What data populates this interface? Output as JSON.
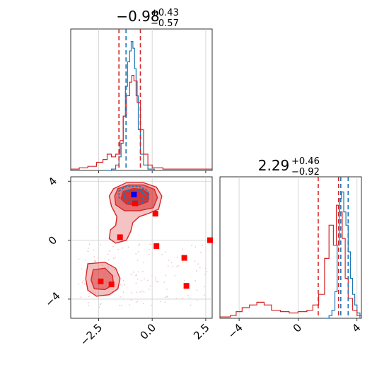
{
  "chart_data": [
    {
      "panel": "top-left marginal histogram (parameter 1)",
      "type": "line",
      "title": {
        "main": "−0.98",
        "sup": "+0.43",
        "sub": "−0.57"
      },
      "xlim": [
        -3.8,
        2.8
      ],
      "series": [
        {
          "color": "#1f77b4",
          "x": [
            -2.2,
            -1.9,
            -1.7,
            -1.55,
            -1.45,
            -1.35,
            -1.25,
            -1.15,
            -1.05,
            -0.98,
            -0.9,
            -0.82,
            -0.75,
            -0.65,
            -0.55,
            -0.4,
            -0.2,
            0.1
          ],
          "y": [
            0,
            0.01,
            0.04,
            0.1,
            0.2,
            0.4,
            0.62,
            0.8,
            0.88,
            0.95,
            0.9,
            0.75,
            0.55,
            0.3,
            0.12,
            0.04,
            0.01,
            0
          ]
        },
        {
          "color": "#d62728",
          "x": [
            -3.8,
            -3.4,
            -3.0,
            -2.6,
            -2.3,
            -2.1,
            -1.9,
            -1.7,
            -1.5,
            -1.35,
            -1.2,
            -1.05,
            -0.95,
            -0.85,
            -0.7,
            -0.55,
            -0.4,
            -0.2,
            0.0,
            0.5,
            1.2,
            2.0,
            2.8
          ],
          "y": [
            0.01,
            0.02,
            0.03,
            0.06,
            0.08,
            0.12,
            0.1,
            0.12,
            0.22,
            0.4,
            0.55,
            0.65,
            0.7,
            0.66,
            0.5,
            0.3,
            0.12,
            0.04,
            0.02,
            0.01,
            0.01,
            0.01,
            0.01
          ]
        }
      ],
      "vlines": [
        {
          "x": -1.22,
          "color": "#1f77b4",
          "style": "dashed"
        },
        {
          "x": -1.55,
          "color": "#d62728",
          "style": "dashed"
        },
        {
          "x": -0.55,
          "color": "#d62728",
          "style": "dashed"
        }
      ]
    },
    {
      "panel": "bottom-left 2D joint density",
      "type": "scatter",
      "xlim": [
        -3.8,
        2.8
      ],
      "ylim": [
        -5.3,
        4.3
      ],
      "xticks": [
        -2.5,
        0.0,
        2.5
      ],
      "xtick_labels": [
        "−2.5",
        "0.0",
        "2.5"
      ],
      "yticks": [
        -4,
        0,
        4
      ],
      "ytick_labels": [
        "−4",
        "0",
        "4"
      ],
      "grid": true,
      "markers": [
        {
          "x": -0.85,
          "y": 3.1,
          "color": "#0000ff",
          "shape": "square"
        },
        {
          "x": -0.8,
          "y": 2.5,
          "color": "#ff0000",
          "shape": "square"
        },
        {
          "x": 0.15,
          "y": 1.8,
          "color": "#ff0000",
          "shape": "square"
        },
        {
          "x": -1.5,
          "y": 0.2,
          "color": "#ff0000",
          "shape": "square"
        },
        {
          "x": 0.2,
          "y": -0.4,
          "color": "#ff0000",
          "shape": "square"
        },
        {
          "x": 2.7,
          "y": 0.0,
          "color": "#ff0000",
          "shape": "square"
        },
        {
          "x": 1.5,
          "y": -1.2,
          "color": "#ff0000",
          "shape": "square"
        },
        {
          "x": -2.4,
          "y": -2.8,
          "color": "#ff0000",
          "shape": "square"
        },
        {
          "x": -1.9,
          "y": -3.0,
          "color": "#ff0000",
          "shape": "square"
        },
        {
          "x": 1.6,
          "y": -3.1,
          "color": "#ff0000",
          "shape": "square"
        }
      ]
    },
    {
      "panel": "bottom-right marginal histogram (parameter 2)",
      "type": "line",
      "title": {
        "main": "2.29",
        "sup": "+0.46",
        "sub": "−0.92"
      },
      "xlim": [
        -5.3,
        4.3
      ],
      "xticks": [
        -4,
        0,
        4
      ],
      "xtick_labels": [
        "−4",
        "0",
        "4"
      ],
      "series": [
        {
          "color": "#1f77b4",
          "x": [
            1.8,
            2.1,
            2.3,
            2.5,
            2.65,
            2.8,
            2.95,
            3.1,
            3.25,
            3.4,
            3.55,
            3.7,
            3.85,
            4.0,
            4.2
          ],
          "y": [
            0,
            0.02,
            0.06,
            0.2,
            0.55,
            0.9,
            0.95,
            0.8,
            0.7,
            0.5,
            0.3,
            0.18,
            0.1,
            0.04,
            0
          ]
        },
        {
          "color": "#d62728",
          "x": [
            -5.3,
            -4.6,
            -4.2,
            -3.8,
            -3.3,
            -2.8,
            -2.3,
            -1.8,
            -1.2,
            -0.6,
            0.0,
            0.6,
            1.0,
            1.4,
            1.8,
            2.1,
            2.4,
            2.6,
            2.8,
            3.0,
            3.2,
            3.4,
            3.7,
            4.0,
            4.3
          ],
          "y": [
            0.01,
            0.02,
            0.05,
            0.08,
            0.1,
            0.12,
            0.1,
            0.06,
            0.05,
            0.04,
            0.05,
            0.06,
            0.1,
            0.18,
            0.45,
            0.7,
            0.55,
            0.85,
            0.8,
            0.6,
            0.3,
            0.15,
            0.06,
            0.02,
            0.01
          ]
        }
      ],
      "vlines": [
        {
          "x": 3.4,
          "color": "#1f77b4",
          "style": "dashed"
        },
        {
          "x": 2.9,
          "color": "#1f77b4",
          "style": "dashed"
        },
        {
          "x": 1.37,
          "color": "#d62728",
          "style": "dashed"
        },
        {
          "x": 2.75,
          "color": "#d62728",
          "style": "dashed"
        }
      ]
    }
  ]
}
